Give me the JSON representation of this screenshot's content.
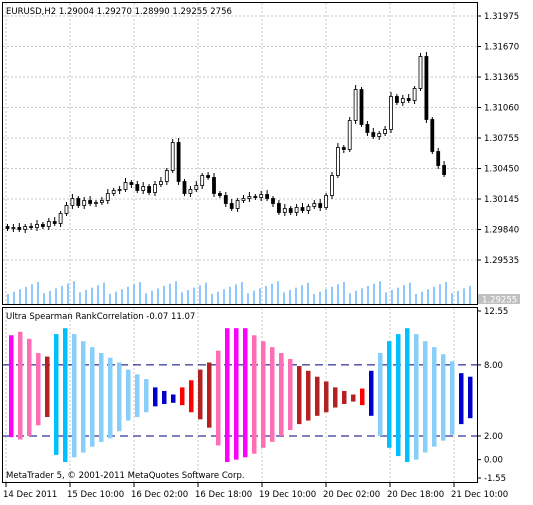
{
  "main_chart": {
    "title": "EURUSD,H2  1.29004 1.29270 1.28990 1.29255  2756",
    "price_ticks": [
      "1.31975",
      "1.31670",
      "1.31365",
      "1.31060",
      "1.30755",
      "1.30450",
      "1.30145",
      "1.29840",
      "1.29535"
    ],
    "current_price": "1.29255",
    "up_candle_color": "#ffffff",
    "down_candle_color": "#000000",
    "volume_color": "#1e90ff",
    "grid_color": "#c8c8c8"
  },
  "indicator": {
    "title": "Ultra Spearman RankCorrelation -0.07 11.07",
    "scale_ticks": [
      "12.55",
      "8.00",
      "2.00",
      "0.00",
      "-1.55"
    ],
    "levels": [
      8.0,
      2.0
    ],
    "level_color": "#000080",
    "colors": {
      "up_strong": "#ff00ff",
      "up_medium": "#ff6eb4",
      "up_weak": "#b22222",
      "down_strong": "#00bfff",
      "down_medium": "#87cefa",
      "down_weak": "#0000cd",
      "neutral": "#ff0000"
    }
  },
  "chart_data": {
    "type": "bar",
    "title": "Ultra Spearman RankCorrelation -0.07 11.07",
    "x_tick_labels": [
      "14 Dec 2011",
      "15 Dec 10:00",
      "16 Dec 02:00",
      "16 Dec 18:00",
      "19 Dec 10:00",
      "20 Dec 02:00",
      "20 Dec 18:00",
      "21 Dec 10:00"
    ],
    "ylim": [
      -1.55,
      12.55
    ],
    "series": [
      {
        "values_high": [
          10.5,
          10.8,
          10.2,
          9.0,
          8.7,
          10.6,
          11.1,
          10.6,
          10.0,
          9.5,
          9.0,
          8.6,
          8.2,
          7.6,
          7.2,
          6.8,
          6.1,
          5.8,
          5.5,
          6.1,
          6.7,
          7.6,
          8.2,
          9.2,
          11.1,
          11.1,
          11.1,
          10.5,
          10.0,
          9.5,
          9.0,
          8.5,
          7.9,
          7.5,
          7.0,
          6.6,
          6.1,
          5.8,
          5.5,
          6.0,
          7.5,
          9.0,
          10.0,
          10.6,
          11.1,
          10.6,
          10.0,
          9.5,
          8.9,
          8.3,
          7.3,
          7.0
        ],
        "values_low": [
          1.9,
          1.7,
          2.0,
          2.9,
          3.6,
          0.4,
          -0.2,
          0.2,
          0.6,
          1.1,
          1.5,
          1.8,
          2.4,
          3.3,
          3.6,
          4.0,
          4.5,
          4.7,
          4.8,
          4.6,
          4.0,
          3.4,
          2.7,
          1.2,
          -0.2,
          0.0,
          0.2,
          0.5,
          1.0,
          1.5,
          2.0,
          2.5,
          3.0,
          3.3,
          3.7,
          4.0,
          4.4,
          4.7,
          4.9,
          4.6,
          3.7,
          2.0,
          1.0,
          0.3,
          -0.2,
          0.0,
          0.6,
          1.1,
          1.6,
          2.1,
          3.0,
          3.5
        ]
      }
    ]
  },
  "xaxis": {
    "labels": [
      "14 Dec 2011",
      "15 Dec 10:00",
      "16 Dec 02:00",
      "16 Dec 18:00",
      "19 Dec 10:00",
      "20 Dec 02:00",
      "20 Dec 18:00",
      "21 Dec 10:00"
    ]
  },
  "copyright": "MetaTrader 5, © 2001-2011 MetaQuotes Software Corp."
}
